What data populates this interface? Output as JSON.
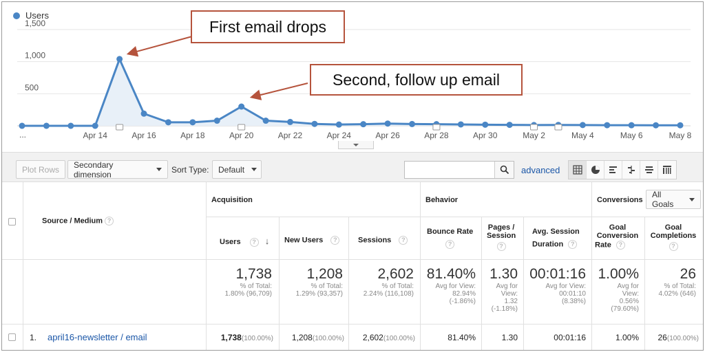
{
  "chart": {
    "legend_label": "Users",
    "series_color": "#4a86c5",
    "fill_color": "#e8f0f8",
    "y_ticks": [
      "1,500",
      "1,000",
      "500"
    ],
    "x_ticks": [
      "...",
      "Apr 14",
      "Apr 16",
      "Apr 18",
      "Apr 20",
      "Apr 22",
      "Apr 24",
      "Apr 26",
      "Apr 28",
      "Apr 30",
      "May 2",
      "May 4",
      "May 6",
      "May 8"
    ]
  },
  "chart_data": {
    "type": "line",
    "series": [
      {
        "name": "Users",
        "values": [
          0,
          0,
          0,
          0,
          1040,
          190,
          55,
          55,
          80,
          300,
          80,
          60,
          30,
          20,
          25,
          35,
          28,
          25,
          22,
          18,
          15,
          12,
          14,
          12,
          10,
          9,
          8,
          8
        ]
      }
    ],
    "ylim": [
      0,
      1500
    ],
    "grid": true,
    "legend": "top-left",
    "annotation_markers_at": [
      4,
      9,
      17,
      21,
      22
    ]
  },
  "callouts": {
    "first": "First email drops",
    "second": "Second, follow up email"
  },
  "toolbar": {
    "plot_rows": "Plot Rows",
    "secondary_dimension": "Secondary dimension",
    "sort_type_label": "Sort Type:",
    "sort_type_value": "Default",
    "search_placeholder": "",
    "advanced": "advanced"
  },
  "table": {
    "dimension_header": "Source / Medium",
    "group_acquisition": "Acquisition",
    "group_behavior": "Behavior",
    "group_conversions": "Conversions",
    "goals_select": "All Goals",
    "columns": {
      "users": "Users",
      "new_users": "New Users",
      "sessions": "Sessions",
      "bounce_rate": "Bounce Rate",
      "pages_l1": "Pages /",
      "pages_l2": "Session",
      "duration_l1": "Avg. Session",
      "duration_l2": "Duration",
      "gcr_l1": "Goal",
      "gcr_l2": "Conversion",
      "gcr_l3": "Rate",
      "gc_l1": "Goal",
      "gc_l2": "Completions"
    },
    "totals": {
      "users": {
        "value": "1,738",
        "sub1": "% of Total:",
        "sub2": "1.80% (96,709)"
      },
      "new_users": {
        "value": "1,208",
        "sub1": "% of Total:",
        "sub2": "1.29% (93,357)"
      },
      "sessions": {
        "value": "2,602",
        "sub1": "% of Total:",
        "sub2": "2.24% (116,108)"
      },
      "bounce_rate": {
        "value": "81.40%",
        "sub1": "Avg for View:",
        "sub2": "82.94%",
        "sub3": "(-1.86%)"
      },
      "pages": {
        "value": "1.30",
        "sub1": "Avg for",
        "sub2": "View:",
        "sub3": "1.32",
        "sub4": "(-1.18%)"
      },
      "duration": {
        "value": "00:01:16",
        "sub1": "Avg for View:",
        "sub2": "00:01:10",
        "sub3": "(8.38%)"
      },
      "gcr": {
        "value": "1.00%",
        "sub1": "Avg for",
        "sub2": "View:",
        "sub3": "0.56%",
        "sub4": "(79.60%)"
      },
      "gc": {
        "value": "26",
        "sub1": "% of Total:",
        "sub2": "4.02% (646)"
      }
    },
    "rows": [
      {
        "index": "1.",
        "source": "april16-newsletter / email",
        "users": "1,738",
        "users_pct": "(100.00%)",
        "new_users": "1,208",
        "new_users_pct": "(100.00%)",
        "sessions": "2,602",
        "sessions_pct": "(100.00%)",
        "bounce_rate": "81.40%",
        "pages": "1.30",
        "duration": "00:01:16",
        "gcr": "1.00%",
        "gc": "26",
        "gc_pct": "(100.00%)"
      }
    ]
  },
  "colors": {
    "callout_border": "#b5533c",
    "link": "#1a56a7",
    "arrow": "#b5533c"
  }
}
